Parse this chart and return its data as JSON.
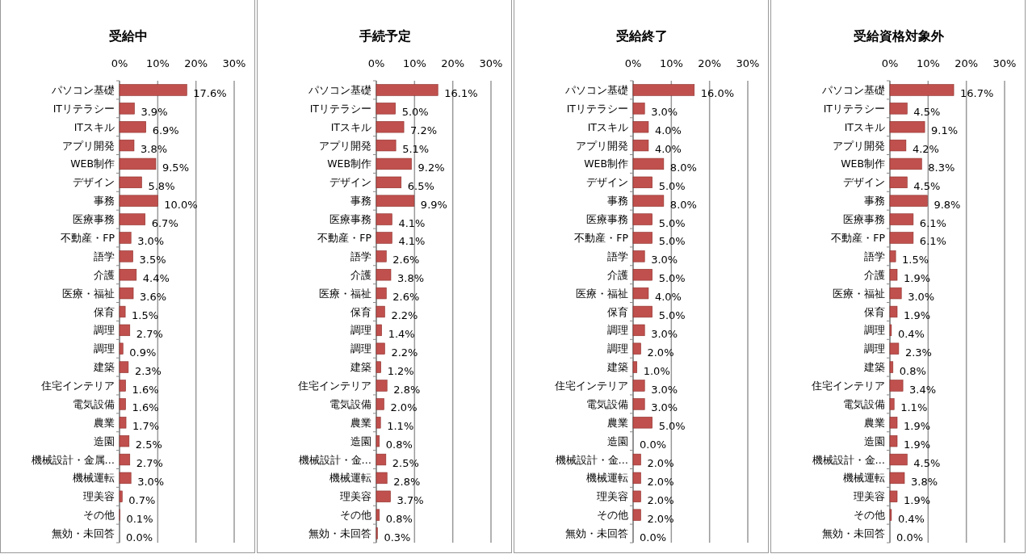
{
  "chart_data": [
    {
      "type": "bar",
      "orientation": "horizontal",
      "title": "受給中",
      "color": "#c0504d",
      "xlim": [
        0,
        30
      ],
      "xticks": [
        {
          "value": 0,
          "label": "0%"
        },
        {
          "value": 10,
          "label": "10%"
        },
        {
          "value": 20,
          "label": "20%"
        },
        {
          "value": 30,
          "label": "30%"
        }
      ],
      "grid": "x",
      "categories": [
        "パソコン基礎",
        "ITリテラシー",
        "ITスキル",
        "アプリ開発",
        "WEB制作",
        "デザイン",
        "事務",
        "医療事務",
        "不動産・FP",
        "語学",
        "介護",
        "医療・福祉",
        "保育",
        "調理",
        "調理",
        "建築",
        "住宅インテリア",
        "電気設備",
        "農業",
        "造園",
        "機械設計・金属…",
        "機械運転",
        "理美容",
        "その他",
        "無効・未回答"
      ],
      "values": [
        17.6,
        3.9,
        6.9,
        3.8,
        9.5,
        5.8,
        10.0,
        6.7,
        3.0,
        3.5,
        4.4,
        3.6,
        1.5,
        2.7,
        0.9,
        2.3,
        1.6,
        1.6,
        1.7,
        2.5,
        2.7,
        3.0,
        0.7,
        0.1,
        0.0
      ],
      "value_labels": [
        "17.6%",
        "3.9%",
        "6.9%",
        "3.8%",
        "9.5%",
        "5.8%",
        "10.0%",
        "6.7%",
        "3.0%",
        "3.5%",
        "4.4%",
        "3.6%",
        "1.5%",
        "2.7%",
        "0.9%",
        "2.3%",
        "1.6%",
        "1.6%",
        "1.7%",
        "2.5%",
        "2.7%",
        "3.0%",
        "0.7%",
        "0.1%",
        "0.0%"
      ]
    },
    {
      "type": "bar",
      "orientation": "horizontal",
      "title": "手続予定",
      "color": "#c0504d",
      "xlim": [
        0,
        30
      ],
      "xticks": [
        {
          "value": 0,
          "label": "0%"
        },
        {
          "value": 10,
          "label": "10%"
        },
        {
          "value": 20,
          "label": "20%"
        },
        {
          "value": 30,
          "label": "30%"
        }
      ],
      "grid": "x",
      "categories": [
        "パソコン基礎",
        "ITリテラシー",
        "ITスキル",
        "アプリ開発",
        "WEB制作",
        "デザイン",
        "事務",
        "医療事務",
        "不動産・FP",
        "語学",
        "介護",
        "医療・福祉",
        "保育",
        "調理",
        "調理",
        "建築",
        "住宅インテリア",
        "電気設備",
        "農業",
        "造園",
        "機械設計・金…",
        "機械運転",
        "理美容",
        "その他",
        "無効・未回答"
      ],
      "values": [
        16.1,
        5.0,
        7.2,
        5.1,
        9.2,
        6.5,
        9.9,
        4.1,
        4.1,
        2.6,
        3.8,
        2.6,
        2.2,
        1.4,
        2.2,
        1.2,
        2.8,
        2.0,
        1.1,
        0.8,
        2.5,
        2.8,
        3.7,
        0.8,
        0.3
      ],
      "value_labels": [
        "16.1%",
        "5.0%",
        "7.2%",
        "5.1%",
        "9.2%",
        "6.5%",
        "9.9%",
        "4.1%",
        "4.1%",
        "2.6%",
        "3.8%",
        "2.6%",
        "2.2%",
        "1.4%",
        "2.2%",
        "1.2%",
        "2.8%",
        "2.0%",
        "1.1%",
        "0.8%",
        "2.5%",
        "2.8%",
        "3.7%",
        "0.8%",
        "0.3%"
      ]
    },
    {
      "type": "bar",
      "orientation": "horizontal",
      "title": "受給終了",
      "color": "#c0504d",
      "xlim": [
        0,
        30
      ],
      "xticks": [
        {
          "value": 0,
          "label": "0%"
        },
        {
          "value": 10,
          "label": "10%"
        },
        {
          "value": 20,
          "label": "20%"
        },
        {
          "value": 30,
          "label": "30%"
        }
      ],
      "grid": "x",
      "categories": [
        "パソコン基礎",
        "ITリテラシー",
        "ITスキル",
        "アプリ開発",
        "WEB制作",
        "デザイン",
        "事務",
        "医療事務",
        "不動産・FP",
        "語学",
        "介護",
        "医療・福祉",
        "保育",
        "調理",
        "調理",
        "建築",
        "住宅インテリア",
        "電気設備",
        "農業",
        "造園",
        "機械設計・金…",
        "機械運転",
        "理美容",
        "その他",
        "無効・未回答"
      ],
      "values": [
        16.0,
        3.0,
        4.0,
        4.0,
        8.0,
        5.0,
        8.0,
        5.0,
        5.0,
        3.0,
        5.0,
        4.0,
        5.0,
        3.0,
        2.0,
        1.0,
        3.0,
        3.0,
        5.0,
        0.0,
        2.0,
        2.0,
        2.0,
        2.0,
        0.0
      ],
      "value_labels": [
        "16.0%",
        "3.0%",
        "4.0%",
        "4.0%",
        "8.0%",
        "5.0%",
        "8.0%",
        "5.0%",
        "5.0%",
        "3.0%",
        "5.0%",
        "4.0%",
        "5.0%",
        "3.0%",
        "2.0%",
        "1.0%",
        "3.0%",
        "3.0%",
        "5.0%",
        "0.0%",
        "2.0%",
        "2.0%",
        "2.0%",
        "2.0%",
        "0.0%"
      ]
    },
    {
      "type": "bar",
      "orientation": "horizontal",
      "title": "受給資格対象外",
      "color": "#c0504d",
      "xlim": [
        0,
        30
      ],
      "xticks": [
        {
          "value": 0,
          "label": "0%"
        },
        {
          "value": 10,
          "label": "10%"
        },
        {
          "value": 20,
          "label": "20%"
        },
        {
          "value": 30,
          "label": "30%"
        }
      ],
      "grid": "x",
      "categories": [
        "パソコン基礎",
        "ITリテラシー",
        "ITスキル",
        "アプリ開発",
        "WEB制作",
        "デザイン",
        "事務",
        "医療事務",
        "不動産・FP",
        "語学",
        "介護",
        "医療・福祉",
        "保育",
        "調理",
        "調理",
        "建築",
        "住宅インテリア",
        "電気設備",
        "農業",
        "造園",
        "機械設計・金…",
        "機械運転",
        "理美容",
        "その他",
        "無効・未回答"
      ],
      "values": [
        16.7,
        4.5,
        9.1,
        4.2,
        8.3,
        4.5,
        9.8,
        6.1,
        6.1,
        1.5,
        1.9,
        3.0,
        1.9,
        0.4,
        2.3,
        0.8,
        3.4,
        1.1,
        1.9,
        1.9,
        4.5,
        3.8,
        1.9,
        0.4,
        0.0
      ],
      "value_labels": [
        "16.7%",
        "4.5%",
        "9.1%",
        "4.2%",
        "8.3%",
        "4.5%",
        "9.8%",
        "6.1%",
        "6.1%",
        "1.5%",
        "1.9%",
        "3.0%",
        "1.9%",
        "0.4%",
        "2.3%",
        "0.8%",
        "3.4%",
        "1.1%",
        "1.9%",
        "1.9%",
        "4.5%",
        "3.8%",
        "1.9%",
        "0.4%",
        "0.0%"
      ]
    }
  ]
}
